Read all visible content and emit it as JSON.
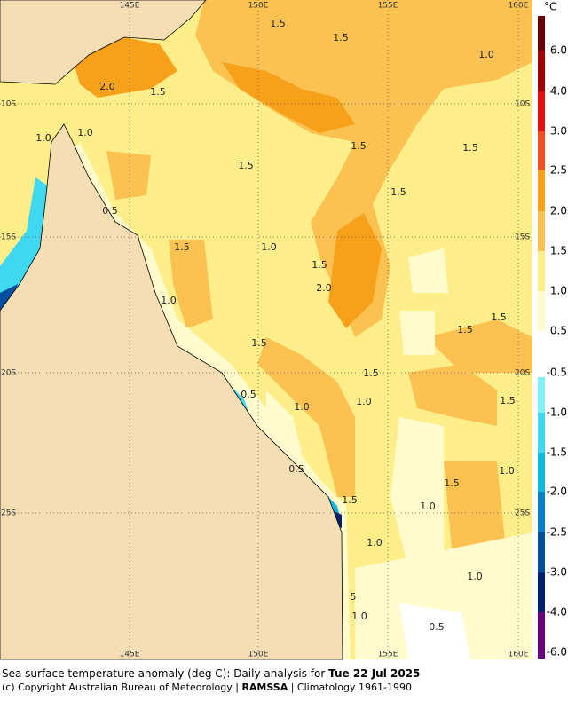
{
  "map": {
    "lon_labels": [
      "145E",
      "150E",
      "155E",
      "160E"
    ],
    "lat_labels": [
      "10S",
      "15S",
      "20S",
      "25S"
    ],
    "contour_labels": [
      "1.5",
      "1.5",
      "1.0",
      "2.0",
      "1.5",
      "1.0",
      "1.0",
      "1.5",
      "1.5",
      "1.5",
      "1.5",
      "0.5",
      "1.5",
      "1.0",
      "1.5",
      "2.0",
      "1.0",
      "1.5",
      "1.5",
      "1.5",
      "1.5",
      "0.5",
      "1.0",
      "1.0",
      "1.5",
      "0.5",
      "1.0",
      "1.5",
      "1.5",
      "1.0",
      "1.0",
      "1.0",
      "5",
      "1.0",
      "0.5"
    ]
  },
  "colorbar": {
    "unit": "°C",
    "labels": [
      "6.0",
      "4.0",
      "3.0",
      "2.5",
      "2.0",
      "1.5",
      "1.0",
      "0.5",
      "-0.5",
      "-1.0",
      "-1.5",
      "-2.0",
      "-2.5",
      "-3.0",
      "-4.0",
      "-6.0"
    ]
  },
  "caption": {
    "line1": "Sea surface temperature anomaly (deg C): Daily analysis for ",
    "date": "Tue 22 Jul 2025",
    "line2_start": "(c) Copyright Australian Bureau of Meteorology | ",
    "org": "RAMSSA",
    "line2_end": " | Climatology 1961-1990"
  }
}
